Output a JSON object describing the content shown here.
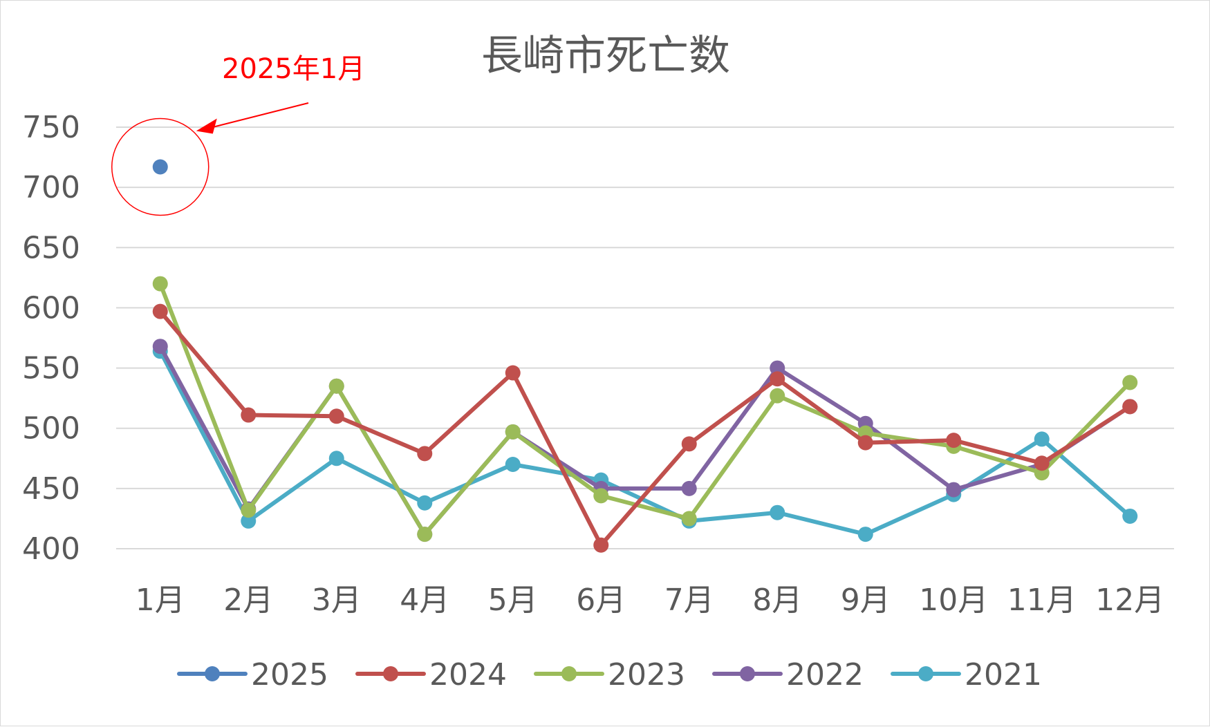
{
  "chart_data": {
    "type": "line",
    "title": "長崎市死亡数",
    "xlabel": "",
    "ylabel": "",
    "categories": [
      "1月",
      "2月",
      "3月",
      "4月",
      "5月",
      "6月",
      "7月",
      "8月",
      "9月",
      "10月",
      "11月",
      "12月"
    ],
    "ylim": [
      400,
      750
    ],
    "yticks": [
      400,
      450,
      500,
      550,
      600,
      650,
      700,
      750
    ],
    "grid": true,
    "legend_position": "bottom",
    "series": [
      {
        "name": "2025",
        "color": "#4f81bd",
        "values": [
          717,
          null,
          null,
          null,
          null,
          null,
          null,
          null,
          null,
          null,
          null,
          null
        ]
      },
      {
        "name": "2024",
        "color": "#c0504d",
        "values": [
          597,
          511,
          510,
          479,
          546,
          403,
          487,
          541,
          488,
          490,
          471,
          518
        ]
      },
      {
        "name": "2023",
        "color": "#9bbb59",
        "values": [
          620,
          432,
          535,
          412,
          497,
          444,
          425,
          527,
          496,
          485,
          463,
          538
        ]
      },
      {
        "name": "2022",
        "color": "#8064a2",
        "values": [
          568,
          433,
          535,
          412,
          497,
          450,
          450,
          550,
          504,
          449,
          470,
          518
        ]
      },
      {
        "name": "2021",
        "color": "#4bacc6",
        "values": [
          564,
          423,
          475,
          438,
          470,
          457,
          423,
          430,
          412,
          445,
          491,
          427
        ]
      }
    ],
    "annotations": [
      {
        "text": "2025年1月",
        "color": "#ff0000",
        "target_category": "1月",
        "target_value": 717
      }
    ]
  }
}
